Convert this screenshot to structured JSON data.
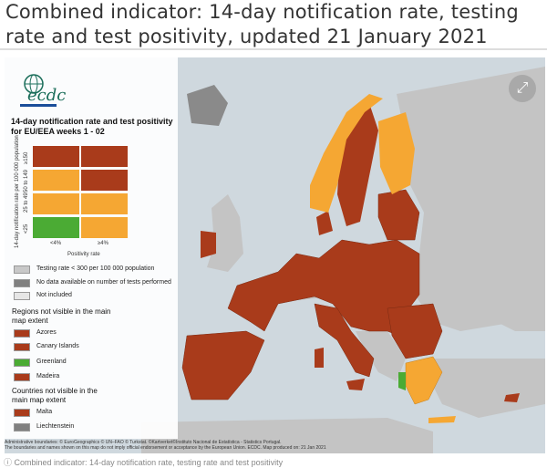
{
  "page": {
    "title": "Combined indicator: 14-day notification rate, testing rate and test positivity, updated 21 January 2021",
    "caption": "Combined indicator: 14-day notification rate, testing rate and test positivity"
  },
  "logo": {
    "text": "ecdc"
  },
  "legend": {
    "title": "14-day notification rate and test positivity for EU/EEA weeks 1 - 02",
    "y_axis_label": "14-day notification rate per 100 000 population",
    "y_ticks": [
      "<25",
      "25 to 49",
      "50 to 149",
      "≥150"
    ],
    "x_axis_label": "Positivity rate",
    "x_ticks": [
      "<4%",
      "≥4%"
    ],
    "matrix_colors": [
      [
        "#a93b1b",
        "#a93b1b"
      ],
      [
        "#f5a733",
        "#a93b1b"
      ],
      [
        "#f5a733",
        "#f5a733"
      ],
      [
        "#4bab34",
        "#f5a733"
      ]
    ],
    "items": [
      {
        "label": "Testing rate < 300 per 100 000 population",
        "color": "#c8c8c8"
      },
      {
        "label": "No data available on number of tests performed",
        "color": "#808080"
      },
      {
        "label": "Not included",
        "color": "#e6e6e6"
      }
    ],
    "regions_heading": "Regions not visible in the main map extent",
    "regions": [
      {
        "label": "Azores",
        "color": "#a93b1b"
      },
      {
        "label": "Canary Islands",
        "color": "#a93b1b"
      },
      {
        "label": "Greenland",
        "color": "#4bab34"
      },
      {
        "label": "Madeira",
        "color": "#a93b1b"
      }
    ],
    "countries_heading": "Countries not visible in the main map extent",
    "countries": [
      {
        "label": "Malta",
        "color": "#a93b1b"
      },
      {
        "label": "Liechtenstein",
        "color": "#808080"
      }
    ]
  },
  "footer": {
    "line1": "Administrative boundaries: © EuroGeographics © UN–FAO © Turkstat. ©Kartverket©Instituto Nacional de Estatística - Statistics Portugal.",
    "line2": "The boundaries and names shown on this map do not imply official endorsement or acceptance by the European Union. ECDC. Map produced on: 21 Jan 2021"
  },
  "colors": {
    "red": "#a93b1b",
    "orange": "#f5a733",
    "green": "#4bab34",
    "gray": "#c8c8c8",
    "sea": "#cfd8de",
    "nonEU": "#c4c4c4"
  },
  "icons": {
    "expand": "expand-arrows-icon"
  }
}
